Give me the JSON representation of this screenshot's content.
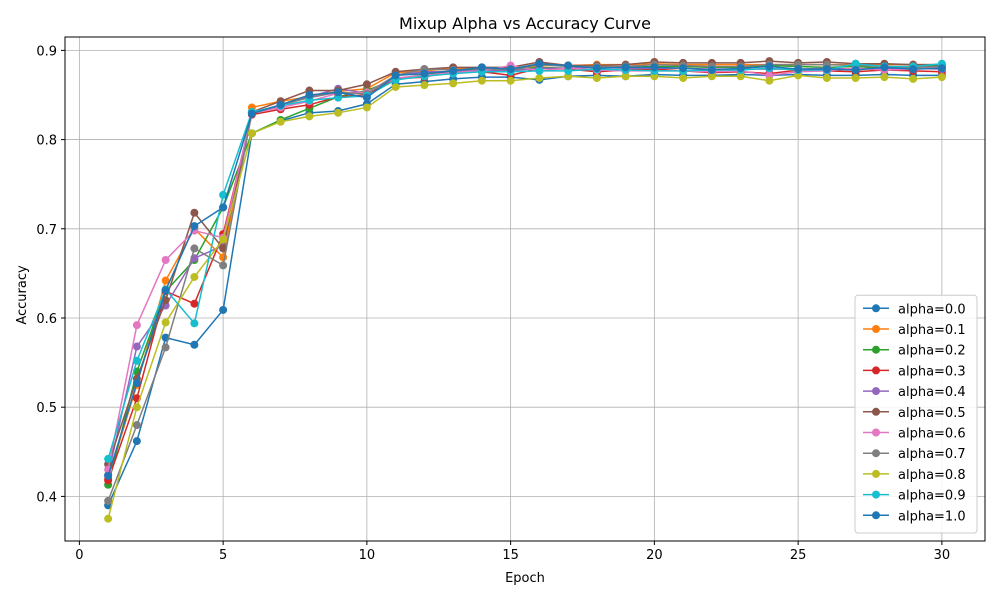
{
  "chart_data": {
    "type": "line",
    "title": "Mixup Alpha vs Accuracy Curve",
    "xlabel": "Epoch",
    "ylabel": "Accuracy",
    "xlim": [
      -0.5,
      31.5
    ],
    "ylim": [
      0.35,
      0.915
    ],
    "xticks": [
      0,
      5,
      10,
      15,
      20,
      25,
      30
    ],
    "yticks": [
      0.4,
      0.5,
      0.6,
      0.7,
      0.8,
      0.9
    ],
    "xtick_labels": [
      "0",
      "5",
      "10",
      "15",
      "20",
      "25",
      "30"
    ],
    "ytick_labels": [
      "0.4",
      "0.5",
      "0.6",
      "0.7",
      "0.8",
      "0.9"
    ],
    "grid": true,
    "legend_position": "lower-right",
    "x": [
      1,
      2,
      3,
      4,
      5,
      6,
      7,
      8,
      9,
      10,
      11,
      12,
      13,
      14,
      15,
      16,
      17,
      18,
      19,
      20,
      21,
      22,
      23,
      24,
      25,
      26,
      27,
      28,
      29,
      30
    ],
    "series": [
      {
        "name": "alpha=0.0",
        "color": "#1f77b4",
        "values": [
          0.39,
          0.462,
          0.578,
          0.57,
          0.609,
          0.807,
          0.821,
          0.83,
          0.832,
          0.84,
          0.862,
          0.865,
          0.868,
          0.87,
          0.87,
          0.867,
          0.871,
          0.872,
          0.871,
          0.873,
          0.872,
          0.872,
          0.873,
          0.872,
          0.873,
          0.872,
          0.872,
          0.873,
          0.872,
          0.872
        ]
      },
      {
        "name": "alpha=0.1",
        "color": "#ff7f0e",
        "values": [
          0.42,
          0.525,
          0.642,
          0.7,
          0.668,
          0.836,
          0.843,
          0.848,
          0.854,
          0.857,
          0.875,
          0.877,
          0.88,
          0.88,
          0.878,
          0.883,
          0.883,
          0.884,
          0.884,
          0.885,
          0.884,
          0.884,
          0.884,
          0.884,
          0.884,
          0.884,
          0.884,
          0.884,
          0.884,
          0.884
        ]
      },
      {
        "name": "alpha=0.2",
        "color": "#2ca02c",
        "values": [
          0.413,
          0.54,
          0.63,
          0.665,
          0.724,
          0.807,
          0.822,
          0.835,
          0.848,
          0.855,
          0.868,
          0.873,
          0.877,
          0.879,
          0.878,
          0.881,
          0.88,
          0.882,
          0.881,
          0.882,
          0.882,
          0.881,
          0.881,
          0.883,
          0.882,
          0.881,
          0.882,
          0.88,
          0.882,
          0.883
        ]
      },
      {
        "name": "alpha=0.3",
        "color": "#d62728",
        "values": [
          0.418,
          0.51,
          0.63,
          0.616,
          0.694,
          0.828,
          0.834,
          0.839,
          0.848,
          0.85,
          0.868,
          0.87,
          0.877,
          0.876,
          0.872,
          0.88,
          0.879,
          0.876,
          0.878,
          0.879,
          0.877,
          0.875,
          0.876,
          0.874,
          0.878,
          0.877,
          0.876,
          0.878,
          0.877,
          0.876
        ]
      },
      {
        "name": "alpha=0.4",
        "color": "#9467bd",
        "values": [
          0.424,
          0.568,
          0.614,
          0.667,
          0.681,
          0.83,
          0.838,
          0.848,
          0.857,
          0.852,
          0.872,
          0.876,
          0.876,
          0.878,
          0.877,
          0.88,
          0.88,
          0.881,
          0.88,
          0.88,
          0.88,
          0.879,
          0.879,
          0.879,
          0.879,
          0.88,
          0.879,
          0.88,
          0.88,
          0.879
        ]
      },
      {
        "name": "alpha=0.5",
        "color": "#8c564b",
        "values": [
          0.436,
          0.532,
          0.62,
          0.718,
          0.678,
          0.831,
          0.843,
          0.855,
          0.855,
          0.862,
          0.876,
          0.879,
          0.881,
          0.881,
          0.881,
          0.887,
          0.883,
          0.883,
          0.884,
          0.887,
          0.886,
          0.886,
          0.886,
          0.888,
          0.886,
          0.887,
          0.885,
          0.885,
          0.884,
          0.884
        ]
      },
      {
        "name": "alpha=0.6",
        "color": "#e377c2",
        "values": [
          0.43,
          0.592,
          0.665,
          0.698,
          0.69,
          0.83,
          0.836,
          0.843,
          0.852,
          0.853,
          0.869,
          0.872,
          0.875,
          0.877,
          0.883,
          0.877,
          0.88,
          0.878,
          0.877,
          0.877,
          0.877,
          0.876,
          0.877,
          0.872,
          0.876,
          0.877,
          0.88,
          0.878,
          0.879,
          0.881
        ]
      },
      {
        "name": "alpha=0.7",
        "color": "#7f7f7f",
        "values": [
          0.395,
          0.48,
          0.567,
          0.678,
          0.659,
          0.83,
          0.839,
          0.847,
          0.853,
          0.851,
          0.872,
          0.879,
          0.878,
          0.88,
          0.878,
          0.884,
          0.882,
          0.882,
          0.882,
          0.884,
          0.883,
          0.882,
          0.882,
          0.884,
          0.884,
          0.884,
          0.883,
          0.882,
          0.881,
          0.882
        ]
      },
      {
        "name": "alpha=0.8",
        "color": "#bcbd22",
        "values": [
          0.375,
          0.5,
          0.595,
          0.646,
          0.688,
          0.807,
          0.82,
          0.826,
          0.83,
          0.836,
          0.859,
          0.861,
          0.863,
          0.866,
          0.866,
          0.869,
          0.871,
          0.869,
          0.871,
          0.871,
          0.869,
          0.871,
          0.871,
          0.866,
          0.872,
          0.869,
          0.869,
          0.87,
          0.868,
          0.87
        ]
      },
      {
        "name": "alpha=0.9",
        "color": "#17becf",
        "values": [
          0.442,
          0.552,
          0.632,
          0.594,
          0.738,
          0.831,
          0.838,
          0.844,
          0.847,
          0.849,
          0.867,
          0.871,
          0.874,
          0.876,
          0.876,
          0.877,
          0.877,
          0.879,
          0.878,
          0.877,
          0.877,
          0.878,
          0.878,
          0.88,
          0.878,
          0.878,
          0.885,
          0.882,
          0.882,
          0.885
        ]
      },
      {
        "name": "alpha=1.0",
        "color": "#1f77b4",
        "values": [
          0.423,
          0.527,
          0.631,
          0.703,
          0.724,
          0.829,
          0.839,
          0.85,
          0.853,
          0.847,
          0.872,
          0.874,
          0.877,
          0.881,
          0.879,
          0.885,
          0.883,
          0.88,
          0.881,
          0.881,
          0.88,
          0.878,
          0.88,
          0.882,
          0.879,
          0.879,
          0.878,
          0.881,
          0.879,
          0.88
        ]
      }
    ]
  }
}
